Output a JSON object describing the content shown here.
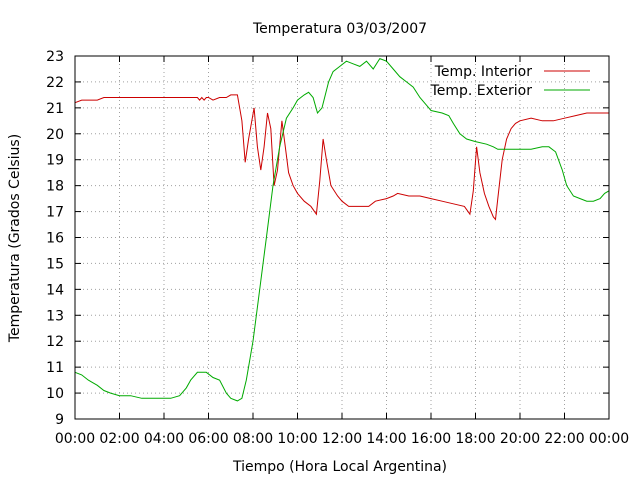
{
  "chart_data": {
    "type": "line",
    "title": "Temperatura 03/03/2007",
    "xlabel": "Tiempo (Hora Local Argentina)",
    "ylabel": "Temperatura (Grados Celsius)",
    "xlim": [
      0,
      24
    ],
    "ylim": [
      9,
      23
    ],
    "x_tick_labels": [
      "00:00",
      "02:00",
      "04:00",
      "06:00",
      "08:00",
      "10:00",
      "12:00",
      "14:00",
      "16:00",
      "18:00",
      "20:00",
      "22:00",
      "00:00"
    ],
    "y_ticks": [
      9,
      10,
      11,
      12,
      13,
      14,
      15,
      16,
      17,
      18,
      19,
      20,
      21,
      22,
      23
    ],
    "grid": true,
    "legend_position": "top-right",
    "series": [
      {
        "name": "Temp. Interior",
        "color": "#cc0000",
        "points": [
          [
            0,
            21.2
          ],
          [
            0.3,
            21.3
          ],
          [
            1.0,
            21.3
          ],
          [
            1.3,
            21.4
          ],
          [
            2.0,
            21.4
          ],
          [
            3.0,
            21.4
          ],
          [
            4.0,
            21.4
          ],
          [
            5.0,
            21.4
          ],
          [
            5.5,
            21.4
          ],
          [
            5.6,
            21.3
          ],
          [
            5.7,
            21.4
          ],
          [
            5.8,
            21.3
          ],
          [
            5.9,
            21.4
          ],
          [
            6.0,
            21.4
          ],
          [
            6.2,
            21.3
          ],
          [
            6.5,
            21.4
          ],
          [
            6.8,
            21.4
          ],
          [
            7.0,
            21.5
          ],
          [
            7.3,
            21.5
          ],
          [
            7.5,
            20.5
          ],
          [
            7.65,
            18.9
          ],
          [
            7.8,
            19.8
          ],
          [
            8.05,
            21.0
          ],
          [
            8.2,
            19.5
          ],
          [
            8.35,
            18.6
          ],
          [
            8.5,
            19.5
          ],
          [
            8.65,
            20.8
          ],
          [
            8.8,
            20.2
          ],
          [
            8.95,
            18.0
          ],
          [
            9.1,
            18.6
          ],
          [
            9.3,
            20.5
          ],
          [
            9.45,
            19.5
          ],
          [
            9.6,
            18.5
          ],
          [
            9.8,
            18.0
          ],
          [
            10.0,
            17.7
          ],
          [
            10.3,
            17.4
          ],
          [
            10.6,
            17.2
          ],
          [
            10.85,
            16.9
          ],
          [
            11.0,
            18.2
          ],
          [
            11.15,
            19.8
          ],
          [
            11.3,
            19.0
          ],
          [
            11.5,
            18.0
          ],
          [
            11.8,
            17.6
          ],
          [
            12.0,
            17.4
          ],
          [
            12.3,
            17.2
          ],
          [
            12.8,
            17.2
          ],
          [
            13.2,
            17.2
          ],
          [
            13.5,
            17.4
          ],
          [
            14.0,
            17.5
          ],
          [
            14.3,
            17.6
          ],
          [
            14.5,
            17.7
          ],
          [
            15.0,
            17.6
          ],
          [
            15.5,
            17.6
          ],
          [
            16.0,
            17.5
          ],
          [
            16.5,
            17.4
          ],
          [
            17.0,
            17.3
          ],
          [
            17.5,
            17.2
          ],
          [
            17.75,
            16.9
          ],
          [
            17.9,
            17.8
          ],
          [
            18.05,
            19.5
          ],
          [
            18.2,
            18.5
          ],
          [
            18.4,
            17.7
          ],
          [
            18.6,
            17.2
          ],
          [
            18.8,
            16.8
          ],
          [
            18.9,
            16.7
          ],
          [
            19.0,
            17.5
          ],
          [
            19.2,
            19.0
          ],
          [
            19.4,
            19.8
          ],
          [
            19.6,
            20.2
          ],
          [
            19.8,
            20.4
          ],
          [
            20.0,
            20.5
          ],
          [
            20.5,
            20.6
          ],
          [
            21.0,
            20.5
          ],
          [
            21.5,
            20.5
          ],
          [
            22.0,
            20.6
          ],
          [
            22.5,
            20.7
          ],
          [
            23.0,
            20.8
          ],
          [
            23.5,
            20.8
          ],
          [
            24.0,
            20.8
          ]
        ]
      },
      {
        "name": "Temp. Exterior",
        "color": "#00aa00",
        "points": [
          [
            0,
            10.8
          ],
          [
            0.3,
            10.7
          ],
          [
            0.6,
            10.5
          ],
          [
            1.0,
            10.3
          ],
          [
            1.3,
            10.1
          ],
          [
            1.6,
            10.0
          ],
          [
            2.0,
            9.9
          ],
          [
            2.5,
            9.9
          ],
          [
            3.0,
            9.8
          ],
          [
            3.5,
            9.8
          ],
          [
            4.0,
            9.8
          ],
          [
            4.3,
            9.8
          ],
          [
            4.7,
            9.9
          ],
          [
            5.0,
            10.2
          ],
          [
            5.2,
            10.5
          ],
          [
            5.5,
            10.8
          ],
          [
            5.9,
            10.8
          ],
          [
            6.2,
            10.6
          ],
          [
            6.5,
            10.5
          ],
          [
            6.8,
            10.0
          ],
          [
            7.0,
            9.8
          ],
          [
            7.3,
            9.7
          ],
          [
            7.5,
            9.8
          ],
          [
            7.7,
            10.5
          ],
          [
            8.0,
            12.0
          ],
          [
            8.3,
            14.0
          ],
          [
            8.6,
            16.0
          ],
          [
            8.9,
            18.0
          ],
          [
            9.2,
            19.5
          ],
          [
            9.5,
            20.6
          ],
          [
            9.8,
            21.0
          ],
          [
            10.0,
            21.3
          ],
          [
            10.3,
            21.5
          ],
          [
            10.5,
            21.6
          ],
          [
            10.7,
            21.4
          ],
          [
            10.9,
            20.8
          ],
          [
            11.1,
            21.0
          ],
          [
            11.4,
            22.0
          ],
          [
            11.6,
            22.4
          ],
          [
            11.9,
            22.6
          ],
          [
            12.2,
            22.8
          ],
          [
            12.5,
            22.7
          ],
          [
            12.8,
            22.6
          ],
          [
            13.1,
            22.8
          ],
          [
            13.4,
            22.5
          ],
          [
            13.7,
            22.9
          ],
          [
            14.0,
            22.8
          ],
          [
            14.3,
            22.5
          ],
          [
            14.6,
            22.2
          ],
          [
            14.9,
            22.0
          ],
          [
            15.2,
            21.8
          ],
          [
            15.5,
            21.4
          ],
          [
            15.8,
            21.1
          ],
          [
            16.0,
            20.9
          ],
          [
            16.5,
            20.8
          ],
          [
            16.8,
            20.7
          ],
          [
            17.0,
            20.4
          ],
          [
            17.3,
            20.0
          ],
          [
            17.6,
            19.8
          ],
          [
            18.0,
            19.7
          ],
          [
            18.5,
            19.6
          ],
          [
            18.8,
            19.5
          ],
          [
            19.0,
            19.4
          ],
          [
            19.5,
            19.4
          ],
          [
            20.0,
            19.4
          ],
          [
            20.5,
            19.4
          ],
          [
            21.0,
            19.5
          ],
          [
            21.3,
            19.5
          ],
          [
            21.6,
            19.3
          ],
          [
            21.9,
            18.6
          ],
          [
            22.1,
            18.0
          ],
          [
            22.4,
            17.6
          ],
          [
            22.7,
            17.5
          ],
          [
            23.0,
            17.4
          ],
          [
            23.3,
            17.4
          ],
          [
            23.6,
            17.5
          ],
          [
            23.8,
            17.7
          ],
          [
            24.0,
            17.8
          ]
        ]
      }
    ]
  }
}
